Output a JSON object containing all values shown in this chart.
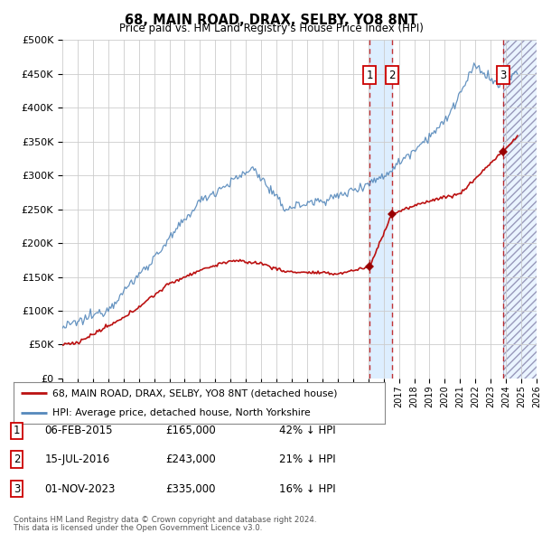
{
  "title": "68, MAIN ROAD, DRAX, SELBY, YO8 8NT",
  "subtitle": "Price paid vs. HM Land Registry's House Price Index (HPI)",
  "legend_line1": "68, MAIN ROAD, DRAX, SELBY, YO8 8NT (detached house)",
  "legend_line2": "HPI: Average price, detached house, North Yorkshire",
  "footer1": "Contains HM Land Registry data © Crown copyright and database right 2024.",
  "footer2": "This data is licensed under the Open Government Licence v3.0.",
  "transactions": [
    {
      "num": 1,
      "date": "06-FEB-2015",
      "price": "£165,000",
      "hpi": "42% ↓ HPI",
      "x_year": 2015.09
    },
    {
      "num": 2,
      "date": "15-JUL-2016",
      "price": "£243,000",
      "hpi": "21% ↓ HPI",
      "x_year": 2016.54
    },
    {
      "num": 3,
      "date": "01-NOV-2023",
      "price": "£335,000",
      "hpi": "16% ↓ HPI",
      "x_year": 2023.83
    }
  ],
  "hpi_color": "#5588bb",
  "price_color": "#bb1111",
  "vspan_color": "#ddeeff",
  "hatch_color": "#aabbcc",
  "marker_color": "#990000",
  "ylim": [
    0,
    500000
  ],
  "xlim_start": 1995.0,
  "xlim_end": 2026.0,
  "background_color": "#ffffff",
  "grid_color": "#cccccc",
  "fig_width": 6.0,
  "fig_height": 5.9,
  "dpi": 100
}
